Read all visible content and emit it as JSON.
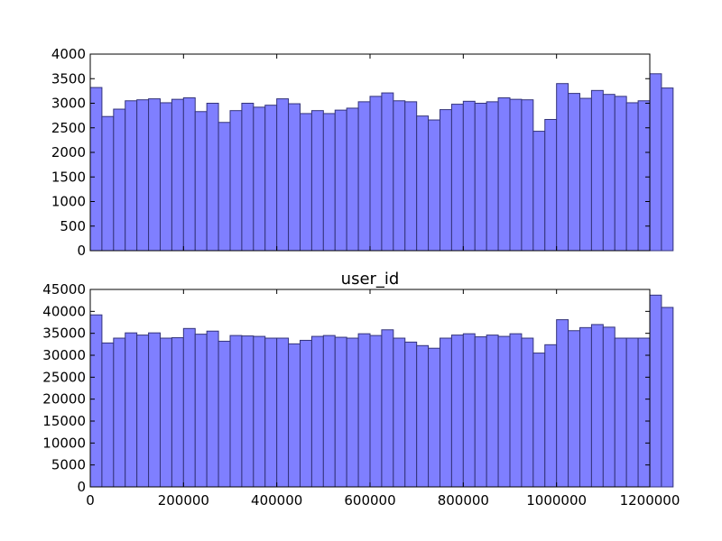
{
  "colors": {
    "bar_fill": "#7f7fff",
    "bar_stroke": "#33337a",
    "axes": "#000000",
    "background": "#ffffff"
  },
  "chart_data": [
    {
      "type": "bar",
      "title": "",
      "xlabel": "",
      "ylabel": "",
      "xlim": [
        0,
        1200000
      ],
      "ylim": [
        0,
        4000
      ],
      "yticks": [
        "0",
        "500",
        "1000",
        "1500",
        "2000",
        "2500",
        "3000",
        "3500",
        "4000"
      ],
      "xticks": [],
      "grid": false,
      "bin_width": 25000,
      "values": [
        3320,
        2730,
        2880,
        3050,
        3070,
        3090,
        3010,
        3080,
        3110,
        2830,
        3000,
        2610,
        2850,
        3000,
        2920,
        2960,
        3090,
        2990,
        2790,
        2850,
        2790,
        2860,
        2900,
        3030,
        3140,
        3210,
        3050,
        3030,
        2740,
        2660,
        2870,
        2980,
        3040,
        3000,
        3030,
        3110,
        3080,
        3070,
        2430,
        2670,
        3400,
        3200,
        3100,
        3260,
        3180,
        3140,
        3010,
        3050,
        3600,
        3310
      ]
    },
    {
      "type": "bar",
      "title": "user_id",
      "xlabel": "",
      "ylabel": "",
      "xlim": [
        0,
        1200000
      ],
      "ylim": [
        0,
        45000
      ],
      "yticks": [
        "0",
        "5000",
        "10000",
        "15000",
        "20000",
        "25000",
        "30000",
        "35000",
        "40000",
        "45000"
      ],
      "xticks": [
        "0",
        "200000",
        "400000",
        "600000",
        "800000",
        "1000000",
        "1200000"
      ],
      "grid": false,
      "bin_width": 25000,
      "values": [
        39200,
        32800,
        33900,
        35100,
        34600,
        35100,
        33900,
        34000,
        36100,
        34800,
        35500,
        33200,
        34500,
        34400,
        34300,
        33900,
        33900,
        32600,
        33400,
        34300,
        34500,
        34100,
        33900,
        34900,
        34500,
        35800,
        33900,
        33000,
        32200,
        31600,
        33900,
        34600,
        34900,
        34200,
        34600,
        34300,
        34900,
        33900,
        30500,
        32400,
        38100,
        35600,
        36300,
        37000,
        36400,
        33900,
        33900,
        33900,
        43700,
        40900
      ]
    }
  ]
}
